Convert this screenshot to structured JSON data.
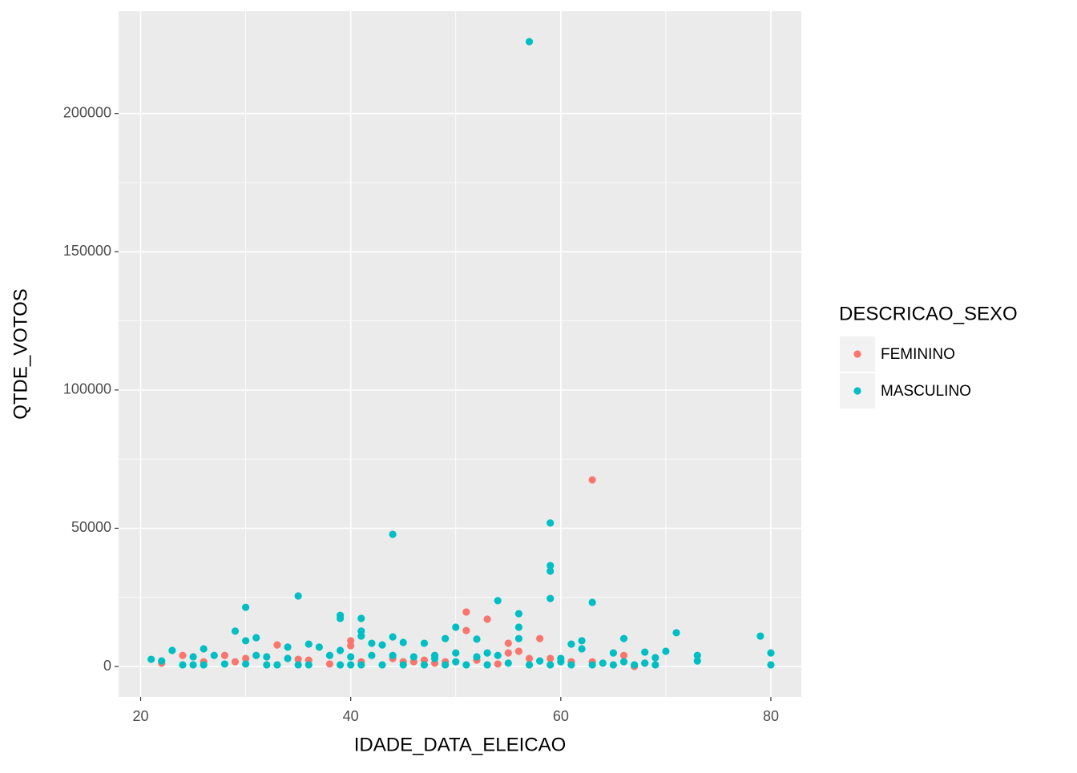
{
  "chart_data": {
    "type": "scatter",
    "x_label": "IDADE_DATA_ELEICAO",
    "y_label": "QTDE_VOTOS",
    "legend_title": "DESCRICAO_SEXO",
    "xlim": [
      17.9,
      82.9
    ],
    "ylim": [
      -11000,
      237000
    ],
    "xticks": [
      20,
      40,
      60,
      80
    ],
    "yticks": [
      0,
      50000,
      100000,
      150000,
      200000
    ],
    "grid": true,
    "legend_position": "right",
    "series": [
      {
        "name": "FEMININO",
        "color": "#F8766D",
        "x": [
          63,
          51,
          53,
          58,
          40,
          40,
          33,
          55,
          51,
          24,
          22,
          28,
          29,
          35,
          36,
          41,
          44,
          45,
          46,
          47,
          48,
          49,
          52,
          54,
          55,
          56,
          57,
          59,
          61,
          63,
          66,
          67,
          68,
          30,
          38,
          26
        ],
        "values": [
          67500,
          19700,
          17100,
          10100,
          9300,
          7500,
          7800,
          8400,
          13000,
          4000,
          1200,
          4000,
          1700,
          2600,
          2300,
          1700,
          2900,
          1700,
          1700,
          2300,
          1200,
          1700,
          2300,
          900,
          4900,
          5500,
          2900,
          2900,
          1700,
          1700,
          4000,
          0,
          1200,
          2900,
          900,
          1700
        ]
      },
      {
        "name": "MASCULINO",
        "color": "#00BFC4",
        "x": [
          57,
          59,
          44,
          59,
          59,
          59,
          54,
          63,
          35,
          30,
          56,
          39,
          39,
          41,
          56,
          50,
          29,
          41,
          41,
          71,
          79,
          31,
          44,
          49,
          56,
          62,
          66,
          45,
          47,
          42,
          43,
          36,
          52,
          30,
          61,
          70,
          80,
          73,
          69,
          68,
          65,
          23,
          26,
          34,
          37,
          39,
          48,
          50,
          53,
          60,
          62,
          21,
          22,
          25,
          27,
          31,
          32,
          34,
          38,
          40,
          42,
          44,
          46,
          48,
          50,
          52,
          54,
          58,
          60,
          64,
          66,
          68,
          73,
          80,
          24,
          25,
          26,
          28,
          30,
          32,
          33,
          35,
          36,
          39,
          40,
          41,
          43,
          45,
          47,
          49,
          51,
          53,
          55,
          57,
          59,
          61,
          63,
          65,
          67,
          69
        ],
        "values": [
          226000,
          51900,
          47800,
          36500,
          34500,
          24600,
          23800,
          23200,
          25500,
          21400,
          19100,
          18500,
          17400,
          17400,
          14200,
          14200,
          12800,
          12800,
          11000,
          12200,
          11000,
          10400,
          10700,
          10100,
          10100,
          9300,
          10100,
          8700,
          8400,
          8400,
          7800,
          8100,
          9900,
          9300,
          8100,
          5500,
          4900,
          4000,
          3200,
          5200,
          4900,
          5800,
          6400,
          7000,
          7000,
          5800,
          4000,
          4900,
          4900,
          2900,
          6400,
          2600,
          2000,
          3500,
          4000,
          4000,
          3500,
          2900,
          4000,
          3500,
          4000,
          4000,
          3500,
          2900,
          1700,
          3500,
          4000,
          2000,
          1700,
          1200,
          1700,
          1200,
          2000,
          600,
          600,
          600,
          600,
          900,
          900,
          600,
          600,
          600,
          600,
          600,
          600,
          600,
          600,
          600,
          600,
          600,
          600,
          600,
          1200,
          600,
          600,
          600,
          600,
          600,
          600,
          600
        ]
      }
    ]
  }
}
